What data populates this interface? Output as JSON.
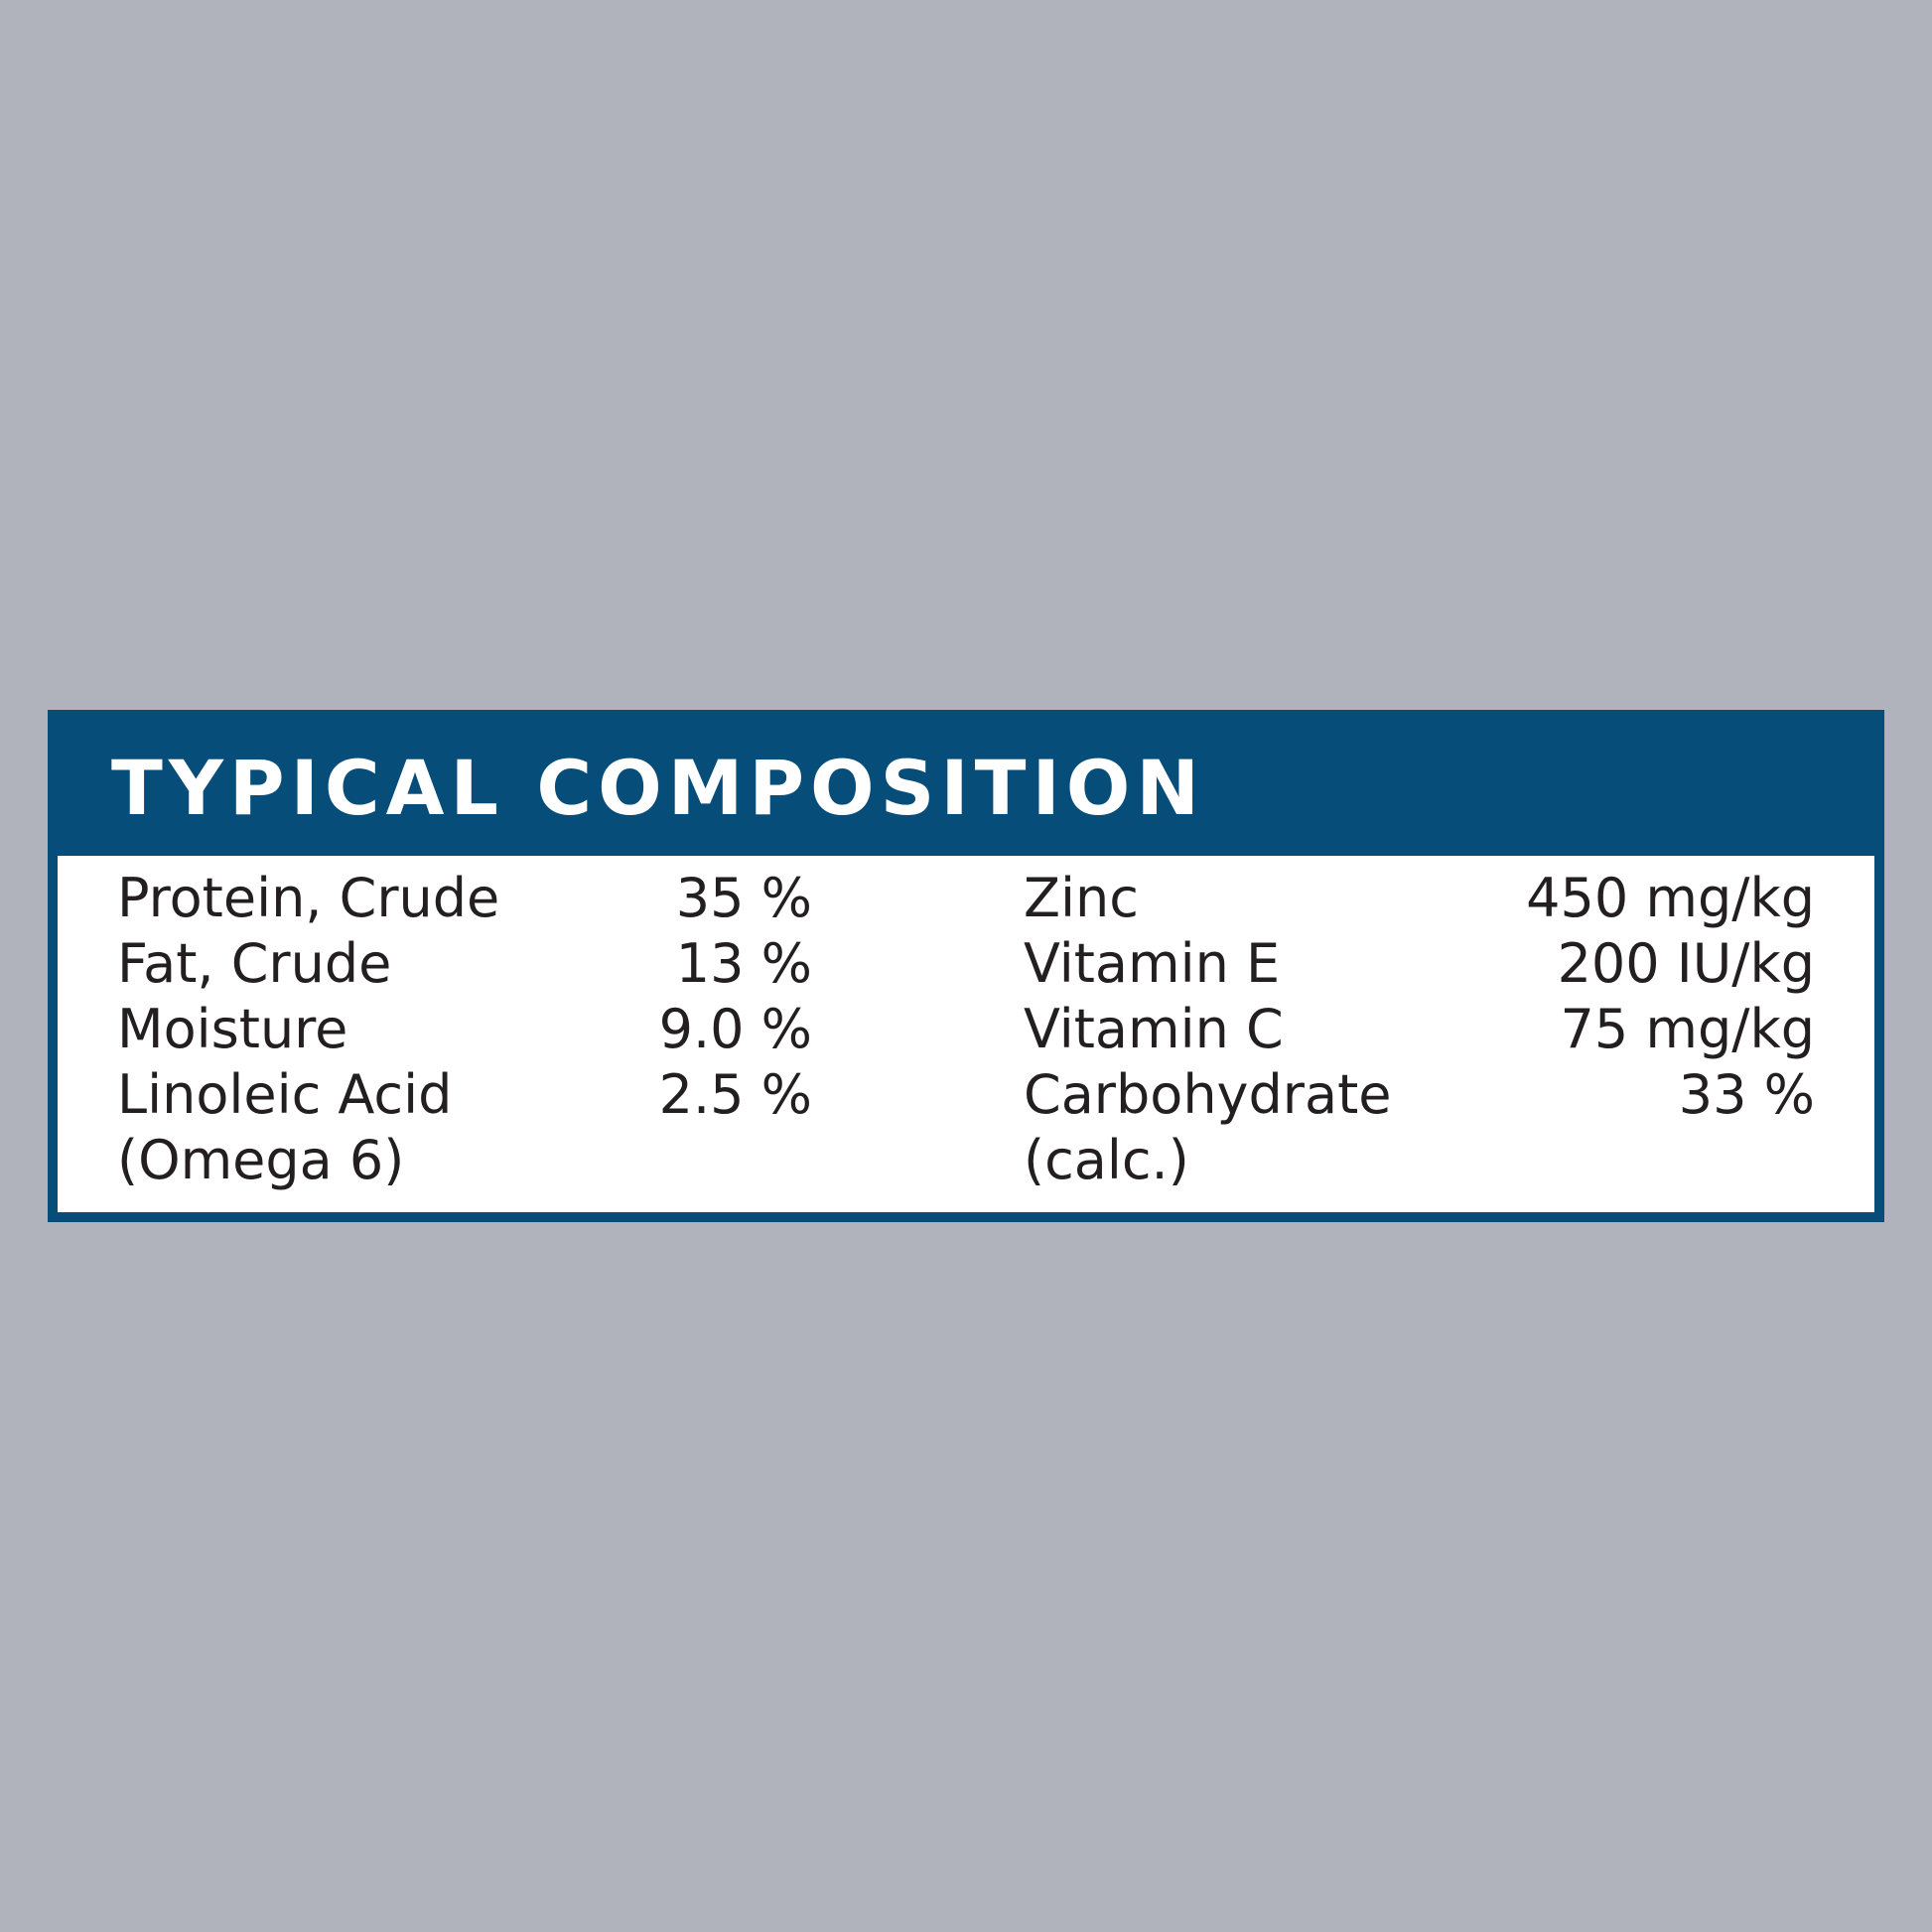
{
  "title": "TYPICAL COMPOSITION",
  "colors": {
    "background": "#b0b3bc",
    "header": "#064d7a",
    "text": "#231f20"
  },
  "left_column": [
    {
      "label": "Protein, Crude",
      "value": "35 %"
    },
    {
      "label": "Fat, Crude",
      "value": "13 %"
    },
    {
      "label": "Moisture",
      "value": "9.0 %"
    },
    {
      "label": "Linoleic Acid",
      "value": "2.5 %"
    },
    {
      "label": "(Omega 6)",
      "value": ""
    }
  ],
  "right_column": [
    {
      "label": "Zinc",
      "value": "450 mg/kg"
    },
    {
      "label": "Vitamin E",
      "value": "200 IU/kg"
    },
    {
      "label": "Vitamin C",
      "value": "75 mg/kg"
    },
    {
      "label": "Carbohydrate",
      "value": "33 %"
    },
    {
      "label": "(calc.)",
      "value": ""
    }
  ]
}
